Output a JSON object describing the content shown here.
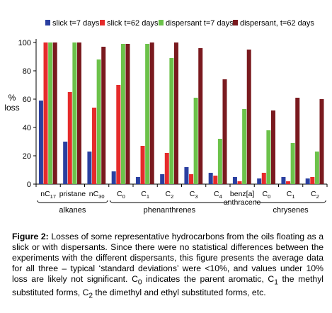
{
  "chart_data": {
    "type": "bar",
    "ylabel": "%\nloss",
    "ylim": [
      0,
      100
    ],
    "yticks": [
      0,
      20,
      40,
      60,
      80,
      100
    ],
    "grid": false,
    "legend_position": "top",
    "categories": [
      "nC17",
      "pristane",
      "nC30",
      "C0",
      "C1",
      "C2",
      "C3",
      "C4",
      "benz[a]\nanthracene",
      "C0",
      "C1",
      "C2"
    ],
    "category_labels": [
      {
        "main": "nC",
        "sub": "17"
      },
      {
        "main": "pristane",
        "sub": ""
      },
      {
        "main": "nC",
        "sub": "30"
      },
      {
        "main": "C",
        "sub": "0"
      },
      {
        "main": "C",
        "sub": "1"
      },
      {
        "main": "C",
        "sub": "2"
      },
      {
        "main": "C",
        "sub": "3"
      },
      {
        "main": "C",
        "sub": "4"
      },
      {
        "main": "benz[a]",
        "sub": "",
        "line2": "anthracene"
      },
      {
        "main": "C",
        "sub": "0"
      },
      {
        "main": "C",
        "sub": "1"
      },
      {
        "main": "C",
        "sub": "2"
      }
    ],
    "groups": [
      {
        "label": "alkanes",
        "start": 0,
        "end": 2
      },
      {
        "label": "phenanthrenes",
        "start": 3,
        "end": 7
      },
      {
        "label": "chrysenes",
        "start": 9,
        "end": 11
      }
    ],
    "series": [
      {
        "name": "slick t=7 days",
        "color": "#2a3fa0",
        "values": [
          59,
          30,
          23,
          9,
          5,
          7,
          12,
          8,
          5,
          4,
          5,
          4
        ]
      },
      {
        "name": "slick t=62 days",
        "color": "#e52b2b",
        "values": [
          100,
          65,
          54,
          70,
          27,
          22,
          7,
          6,
          2,
          8,
          2,
          5
        ]
      },
      {
        "name": "dispersant t=7 days",
        "color": "#6cc24a",
        "values": [
          100,
          100,
          88,
          99,
          99,
          89,
          61,
          32,
          53,
          38,
          29,
          23
        ]
      },
      {
        "name": "dispersant, t=62 days",
        "color": "#7a1a1f",
        "values": [
          100,
          100,
          97,
          99,
          100,
          100,
          96,
          74,
          95,
          52,
          61,
          60
        ]
      }
    ]
  },
  "caption": {
    "label": "Figure 2:",
    "text": "Losses of some representative hydrocarbons from the oils floating as a slick or with dispersants. Since there were no statistical differences between the experiments with the different dispersants, this figure presents the average data for all three – typical ‘standard deviations’ were <10%, and values under 10% loss are likely not significant. C0 indicates the parent aromatic, C1 the methyl substituted forms, C2 the dimethyl and ethyl substituted forms, etc.",
    "seg1": " Losses of some representative hydrocarbons from the oils floating as a slick or with dispersants. Since there were no statistical differences between the experiments with the different dispersants, this figure presents the average data for all three – typical ‘standard deviations’ were <10%, and values under 10% loss are likely not significant. C",
    "sub1": "0",
    "seg2": " indicates the parent aromatic, C",
    "sub2": "1",
    "seg3": " the methyl substituted forms, C",
    "sub3": "2",
    "seg4": " the dimethyl and ethyl substituted forms, etc."
  }
}
